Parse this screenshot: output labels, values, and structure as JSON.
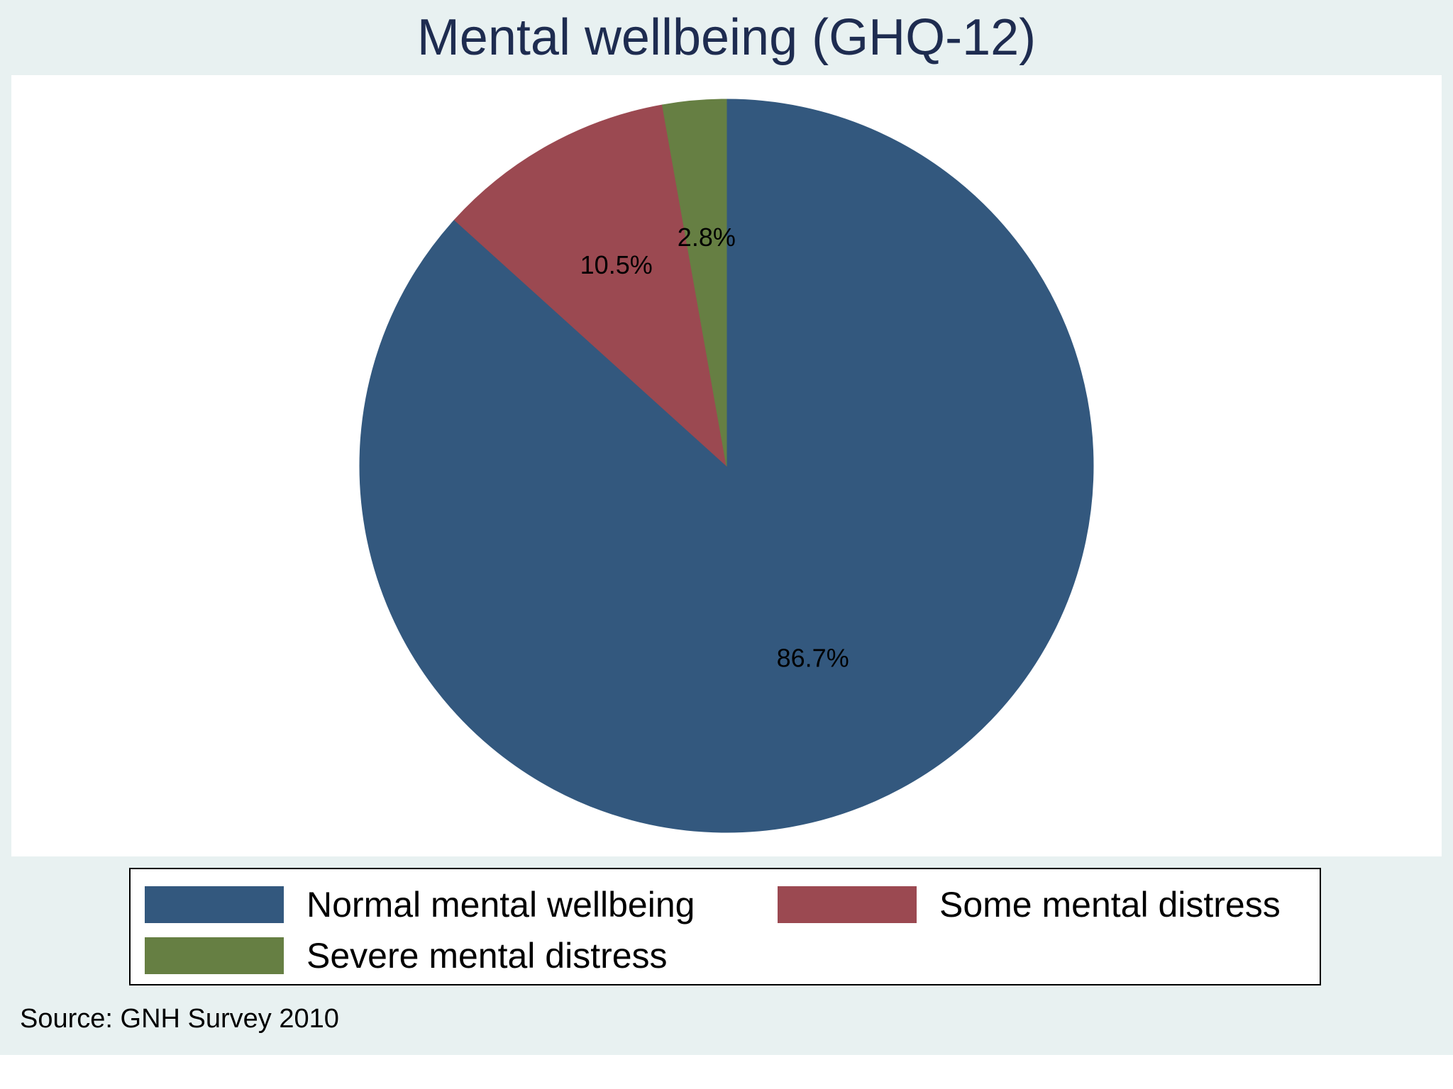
{
  "chart_data": {
    "type": "pie",
    "title": "Mental wellbeing (GHQ-12)",
    "slices": [
      {
        "label": "Normal mental wellbeing",
        "value": 86.7,
        "display": "86.7%",
        "color": "#33587e"
      },
      {
        "label": "Some mental distress",
        "value": 10.5,
        "display": "10.5%",
        "color": "#9b4951"
      },
      {
        "label": "Severe mental distress",
        "value": 2.8,
        "display": "2.8%",
        "color": "#667f43"
      }
    ],
    "start_angle": "12 o'clock",
    "direction": "clockwise",
    "legend_placement": "bottom",
    "note": "Source: GNH Survey 2010"
  }
}
